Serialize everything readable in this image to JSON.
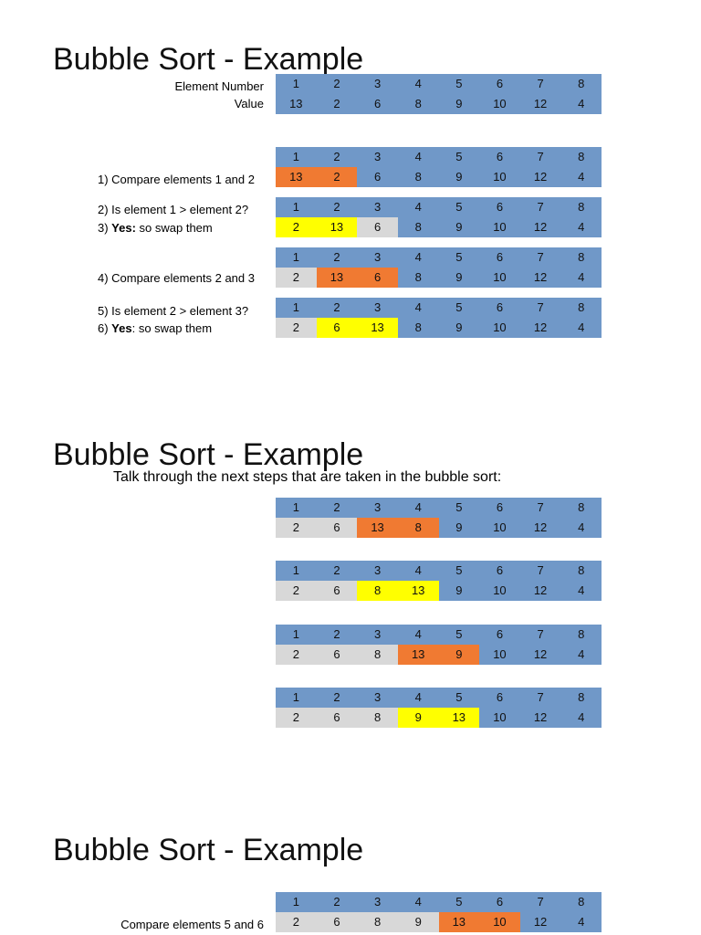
{
  "title": "Bubble Sort - Example",
  "subtitle": "Talk through the next steps that are taken in the bubble sort:",
  "colors": {
    "header": "#7098c8",
    "unsorted": "#7098c8",
    "compare": "#f07a32",
    "swapped": "#ffff00",
    "done": "#d8d8d8"
  },
  "intro": {
    "element_number_label": "Element Number",
    "value_label": "Value",
    "numbers": [
      "1",
      "2",
      "3",
      "4",
      "5",
      "6",
      "7",
      "8"
    ],
    "values": [
      "13",
      "2",
      "6",
      "8",
      "9",
      "10",
      "12",
      "4"
    ]
  },
  "steps_a": [
    {
      "numbers": [
        "1",
        "2",
        "3",
        "4",
        "5",
        "6",
        "7",
        "8"
      ],
      "values": [
        "13",
        "2",
        "6",
        "8",
        "9",
        "10",
        "12",
        "4"
      ],
      "states": [
        "orange",
        "orange",
        "blue",
        "blue",
        "blue",
        "blue",
        "blue",
        "blue"
      ],
      "lines": [
        {
          "text": "1) Compare elements 1 and 2"
        }
      ]
    },
    {
      "numbers": [
        "1",
        "2",
        "3",
        "4",
        "5",
        "6",
        "7",
        "8"
      ],
      "values": [
        "2",
        "13",
        "6",
        "8",
        "9",
        "10",
        "12",
        "4"
      ],
      "states": [
        "yellow",
        "yellow",
        "gray",
        "blue",
        "blue",
        "blue",
        "blue",
        "blue"
      ],
      "lines": [
        {
          "text": "2) Is element 1 > element 2?"
        },
        {
          "prefix": "3) ",
          "bold": "Yes:",
          "text": " so swap them"
        }
      ]
    },
    {
      "numbers": [
        "1",
        "2",
        "3",
        "4",
        "5",
        "6",
        "7",
        "8"
      ],
      "values": [
        "2",
        "13",
        "6",
        "8",
        "9",
        "10",
        "12",
        "4"
      ],
      "states": [
        "gray",
        "orange",
        "orange",
        "blue",
        "blue",
        "blue",
        "blue",
        "blue"
      ],
      "lines": [
        {
          "text": "4) Compare elements 2 and 3"
        }
      ]
    },
    {
      "numbers": [
        "1",
        "2",
        "3",
        "4",
        "5",
        "6",
        "7",
        "8"
      ],
      "values": [
        "2",
        "6",
        "13",
        "8",
        "9",
        "10",
        "12",
        "4"
      ],
      "states": [
        "gray",
        "yellow",
        "yellow",
        "blue",
        "blue",
        "blue",
        "blue",
        "blue"
      ],
      "lines": [
        {
          "text": "5) Is element 2 > element 3?"
        },
        {
          "prefix": "6) ",
          "bold": "Yes",
          "text": ": so swap them"
        }
      ]
    }
  ],
  "steps_b": [
    {
      "numbers": [
        "1",
        "2",
        "3",
        "4",
        "5",
        "6",
        "7",
        "8"
      ],
      "values": [
        "2",
        "6",
        "13",
        "8",
        "9",
        "10",
        "12",
        "4"
      ],
      "states": [
        "gray",
        "gray",
        "orange",
        "orange",
        "blue",
        "blue",
        "blue",
        "blue"
      ]
    },
    {
      "numbers": [
        "1",
        "2",
        "3",
        "4",
        "5",
        "6",
        "7",
        "8"
      ],
      "values": [
        "2",
        "6",
        "8",
        "13",
        "9",
        "10",
        "12",
        "4"
      ],
      "states": [
        "gray",
        "gray",
        "yellow",
        "yellow",
        "blue",
        "blue",
        "blue",
        "blue"
      ]
    },
    {
      "numbers": [
        "1",
        "2",
        "3",
        "4",
        "5",
        "6",
        "7",
        "8"
      ],
      "values": [
        "2",
        "6",
        "8",
        "13",
        "9",
        "10",
        "12",
        "4"
      ],
      "states": [
        "gray",
        "gray",
        "gray",
        "orange",
        "orange",
        "blue",
        "blue",
        "blue"
      ]
    },
    {
      "numbers": [
        "1",
        "2",
        "3",
        "4",
        "5",
        "6",
        "7",
        "8"
      ],
      "values": [
        "2",
        "6",
        "8",
        "9",
        "13",
        "10",
        "12",
        "4"
      ],
      "states": [
        "gray",
        "gray",
        "gray",
        "yellow",
        "yellow",
        "blue",
        "blue",
        "blue"
      ]
    }
  ],
  "steps_c": [
    {
      "numbers": [
        "1",
        "2",
        "3",
        "4",
        "5",
        "6",
        "7",
        "8"
      ],
      "values": [
        "2",
        "6",
        "8",
        "9",
        "13",
        "10",
        "12",
        "4"
      ],
      "states": [
        "gray",
        "gray",
        "gray",
        "gray",
        "orange",
        "orange",
        "blue",
        "blue"
      ],
      "lines": [
        {
          "text": "Compare elements 5 and 6"
        }
      ]
    }
  ]
}
